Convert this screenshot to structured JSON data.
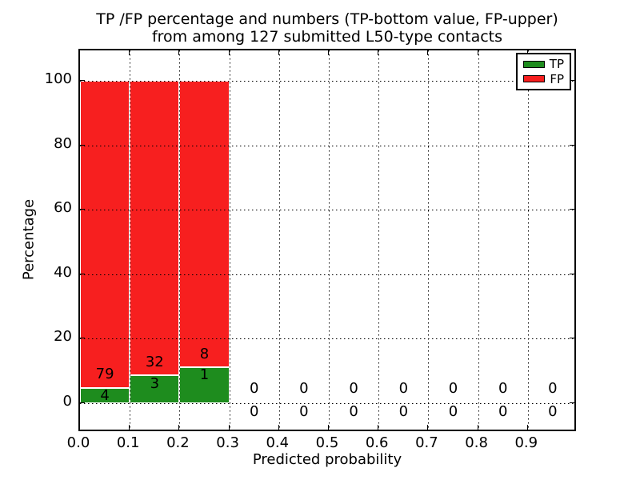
{
  "figure": {
    "title_line1": "TP /FP percentage and numbers (TP-bottom value, FP-upper)",
    "title_line2": "from among 127 submitted L50-type contacts"
  },
  "chart_data": {
    "type": "bar",
    "stacked": true,
    "title": "TP /FP percentage and numbers (TP-bottom value, FP-upper)\nfrom among 127 submitted L50-type contacts",
    "xlabel": "Predicted probability",
    "ylabel": "Percentage",
    "total_contacts": 127,
    "bin_width": 0.1,
    "categories": [
      "0.0-0.1",
      "0.1-0.2",
      "0.2-0.3",
      "0.3-0.4",
      "0.4-0.5",
      "0.5-0.6",
      "0.6-0.7",
      "0.7-0.8",
      "0.8-0.9",
      "0.9-1.0"
    ],
    "bins_x0": [
      0.0,
      0.1,
      0.2,
      0.3,
      0.4,
      0.5,
      0.6,
      0.7,
      0.8,
      0.9
    ],
    "series": [
      {
        "name": "TP",
        "color": "#1e8c1e",
        "counts": [
          4,
          3,
          1,
          0,
          0,
          0,
          0,
          0,
          0,
          0
        ],
        "pct": [
          4.82,
          8.57,
          11.11,
          0,
          0,
          0,
          0,
          0,
          0,
          0
        ]
      },
      {
        "name": "FP",
        "color": "#f71f1f",
        "counts": [
          79,
          32,
          8,
          0,
          0,
          0,
          0,
          0,
          0,
          0
        ],
        "pct": [
          95.18,
          91.43,
          88.89,
          0,
          0,
          0,
          0,
          0,
          0,
          0
        ]
      }
    ],
    "xlim": [
      0.0,
      1.0
    ],
    "ylim": [
      -9.3,
      109.5
    ],
    "x_tick_labels": [
      "0.0",
      "0.1",
      "0.2",
      "0.3",
      "0.4",
      "0.5",
      "0.6",
      "0.7",
      "0.8",
      "0.9"
    ],
    "y_ticks": [
      0,
      20,
      40,
      60,
      80,
      100
    ],
    "y_tick_labels": [
      "0",
      "20",
      "40",
      "60",
      "80",
      "100"
    ],
    "grid": "dotted",
    "grid_above_bars": true,
    "legend": {
      "position": "upper right",
      "items": [
        "TP",
        "FP"
      ]
    },
    "colors": {
      "tp": "#1e8c1e",
      "fp": "#f71f1f",
      "grid": "#000000",
      "text": "#000000",
      "background": "#ffffff"
    }
  }
}
